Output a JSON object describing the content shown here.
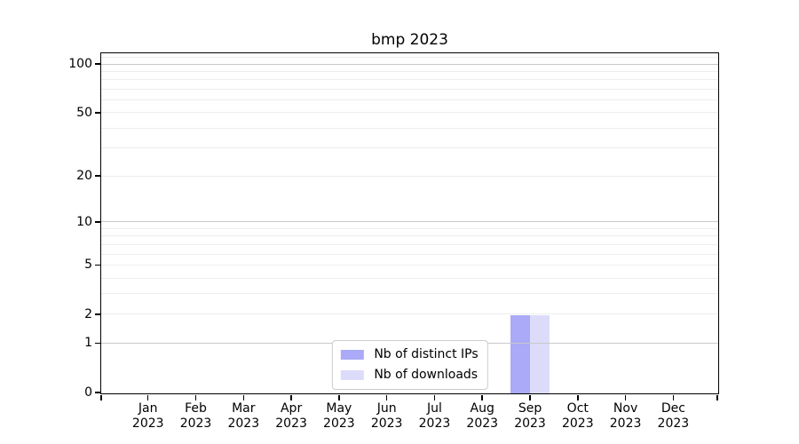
{
  "chart_data": {
    "type": "bar",
    "title": "bmp 2023",
    "categories": [
      "Jan",
      "Feb",
      "Mar",
      "Apr",
      "May",
      "Jun",
      "Jul",
      "Aug",
      "Sep",
      "Oct",
      "Nov",
      "Dec"
    ],
    "category_year": "2023",
    "series": [
      {
        "name": "Nb of distinct IPs",
        "color": "#aaaaf8",
        "values": [
          0,
          0,
          0,
          0,
          0,
          0,
          0,
          0,
          2,
          0,
          0,
          0
        ]
      },
      {
        "name": "Nb of downloads",
        "color": "#dcdcfa",
        "values": [
          0,
          0,
          0,
          0,
          0,
          0,
          0,
          0,
          2,
          0,
          0,
          0
        ]
      }
    ],
    "xlabel": "",
    "ylabel": "",
    "yscale": "log1p",
    "ylim": [
      0,
      116.5
    ],
    "yticks": [
      0,
      1,
      2,
      5,
      10,
      20,
      50,
      100
    ],
    "major_gridlines": [
      1,
      10,
      100
    ],
    "minor_gridlines": [
      2,
      3,
      4,
      5,
      6,
      7,
      8,
      9,
      20,
      30,
      40,
      50,
      60,
      70,
      80,
      90,
      110
    ],
    "grid": true,
    "legend": {
      "position": "lower center",
      "entries": [
        "Nb of distinct IPs",
        "Nb of downloads"
      ]
    },
    "colors": {
      "major_grid": "#c8c8c8",
      "minor_grid": "#ededed",
      "spine": "#000000",
      "background": "#ffffff"
    }
  }
}
